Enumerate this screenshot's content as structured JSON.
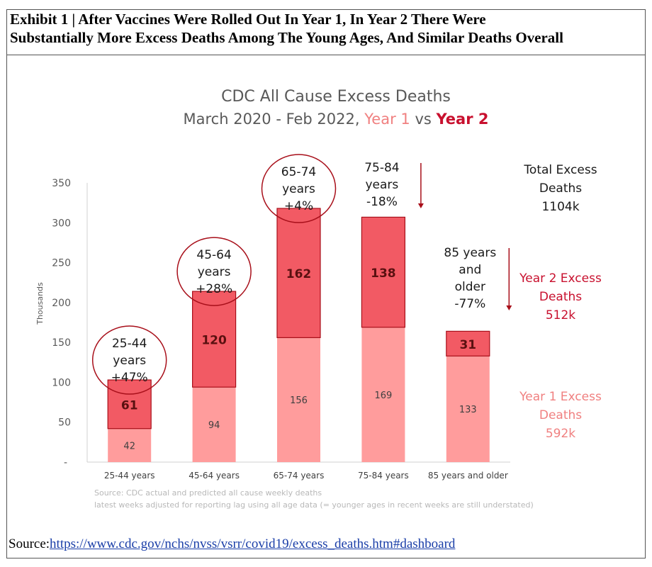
{
  "exhibit": {
    "title_line1": "Exhibit 1 | After Vaccines Were Rolled Out In Year 1, In Year 2 There Were",
    "title_line2": "Substantially More Excess Deaths Among The Young Ages, And Similar Deaths Overall"
  },
  "source": {
    "label": "Source:",
    "link": "https://www.cdc.gov/nchs/nvss/vsrr/covid19/excess_deaths.htm#dashboard"
  },
  "colors": {
    "year1": "#ff9c9c",
    "year2": "#f25a64",
    "year2_text": "#c8102e",
    "year1_text": "#f08080",
    "outline": "#a80f1a",
    "axis_text": "#595959",
    "title_text": "#595959"
  },
  "chart_data": {
    "type": "bar",
    "stacked": true,
    "title": "CDC All Cause Excess Deaths",
    "subtitle": {
      "prefix": "March 2020 - Feb 2022,",
      "year1": "Year 1",
      "vs": "vs",
      "year2": "Year 2"
    },
    "ylabel": "Thousands",
    "ylim": [
      0,
      350
    ],
    "yticks": [
      350,
      300,
      250,
      200,
      150,
      100,
      50
    ],
    "ytick_zero_label": "-",
    "categories": [
      "25-44 years",
      "45-64 years",
      "65-74 years",
      "75-84 years",
      "85 years and older"
    ],
    "series": [
      {
        "name": "Year 1 Excess Deaths",
        "values": [
          42,
          94,
          156,
          169,
          133
        ]
      },
      {
        "name": "Year 2 Excess Deaths",
        "values": [
          61,
          120,
          162,
          138,
          31
        ]
      }
    ],
    "annotations": [
      {
        "lines": [
          "25-44",
          "years",
          "+47%"
        ],
        "circled": true
      },
      {
        "lines": [
          "45-64",
          "years",
          "+28%"
        ],
        "circled": true
      },
      {
        "lines": [
          "65-74",
          "years",
          "+4%"
        ],
        "circled": true
      },
      {
        "lines": [
          "75-84",
          "years",
          "-18%"
        ],
        "circled": false,
        "arrow": "down"
      },
      {
        "lines": [
          "85 years",
          "and",
          "older",
          "-77%"
        ],
        "circled": false,
        "arrow": "down"
      }
    ],
    "totals": {
      "total": [
        "Total Excess",
        "Deaths",
        "1104k"
      ],
      "year2": [
        "Year 2 Excess",
        "Deaths",
        "512k"
      ],
      "year1": [
        "Year 1 Excess",
        "Deaths",
        "592k"
      ]
    },
    "footnote": [
      "Source: CDC actual and predicted all cause weekly deaths",
      "latest weeks adjusted for reporting lag using all age data (= younger ages in recent weeks are still understated)"
    ],
    "grid": false,
    "legend": "right"
  }
}
